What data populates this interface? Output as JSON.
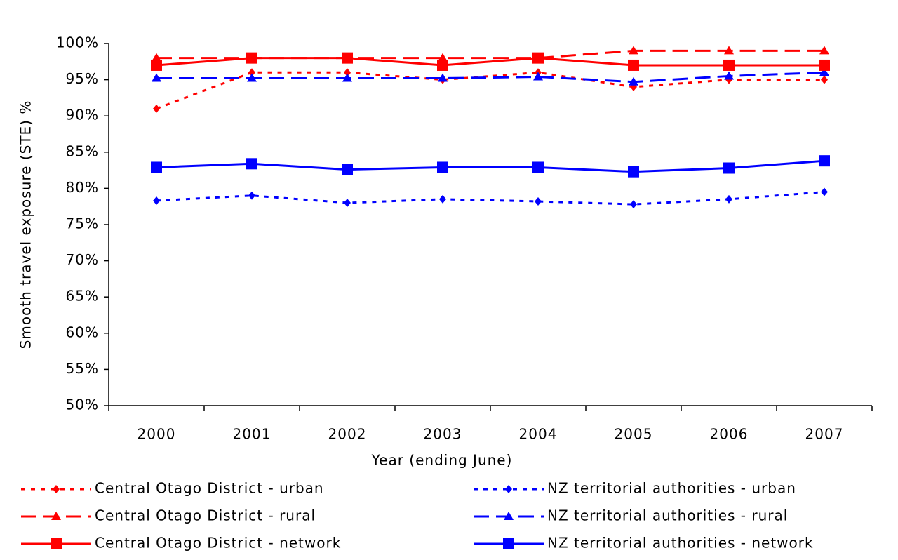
{
  "chart_data": {
    "type": "line",
    "x_label": "Year (ending June)",
    "y_label": "Smooth travel exposure (STE) %",
    "categories": [
      "2000",
      "2001",
      "2002",
      "2003",
      "2004",
      "2005",
      "2006",
      "2007"
    ],
    "ylim": [
      50,
      100
    ],
    "yticks": [
      {
        "value": 50,
        "label": "50%"
      },
      {
        "value": 55,
        "label": "55%"
      },
      {
        "value": 60,
        "label": "60%"
      },
      {
        "value": 65,
        "label": "65%"
      },
      {
        "value": 70,
        "label": "70%"
      },
      {
        "value": 75,
        "label": "75%"
      },
      {
        "value": 80,
        "label": "80%"
      },
      {
        "value": 85,
        "label": "85%"
      },
      {
        "value": 90,
        "label": "90%"
      },
      {
        "value": 95,
        "label": "95%"
      },
      {
        "value": 100,
        "label": "100%"
      }
    ],
    "grid": false,
    "series": [
      {
        "name": "Central Otago District - urban",
        "color": "#ff0000",
        "dash": "dotted",
        "marker": "diamond",
        "values": [
          91,
          96,
          96,
          95,
          96,
          94,
          95,
          95
        ]
      },
      {
        "name": "NZ territorial authorities - urban",
        "color": "#0000ff",
        "dash": "dotted",
        "marker": "diamond",
        "values": [
          78.3,
          79,
          78,
          78.5,
          78.2,
          77.8,
          78.5,
          79.5
        ]
      },
      {
        "name": "Central Otago District - rural",
        "color": "#ff0000",
        "dash": "dashed",
        "marker": "triangle",
        "values": [
          98,
          98,
          98,
          98,
          98,
          99,
          99,
          99
        ]
      },
      {
        "name": "NZ territorial authorities - rural",
        "color": "#0000ff",
        "dash": "dashed",
        "marker": "triangle",
        "values": [
          95.2,
          95.2,
          95.2,
          95.2,
          95.4,
          94.7,
          95.5,
          96
        ]
      },
      {
        "name": "Central Otago District - network",
        "color": "#ff0000",
        "dash": "solid",
        "marker": "square",
        "values": [
          97,
          98,
          98,
          97,
          98,
          97,
          97,
          97
        ]
      },
      {
        "name": "NZ territorial authorities - network",
        "color": "#0000ff",
        "dash": "solid",
        "marker": "square",
        "values": [
          82.9,
          83.4,
          82.6,
          82.9,
          82.9,
          82.3,
          82.8,
          83.8
        ]
      }
    ]
  }
}
